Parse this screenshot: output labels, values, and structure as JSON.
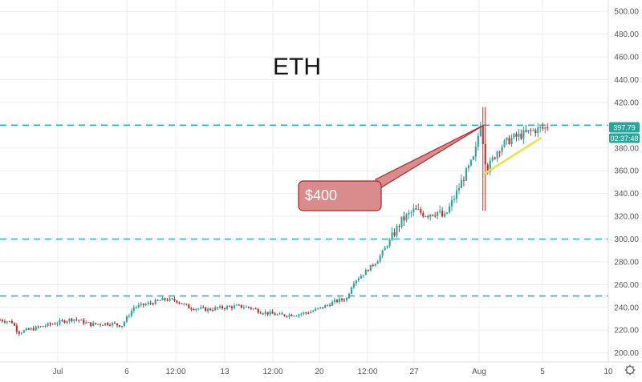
{
  "chart_data": {
    "type": "candlestick",
    "title": "ETH",
    "y_axis": {
      "ticks": [
        200,
        220,
        240,
        260,
        280,
        300,
        320,
        340,
        360,
        380,
        400,
        420,
        440,
        460,
        480,
        500
      ],
      "tick_labels": [
        "200.00",
        "220.00",
        "240.00",
        "260.00",
        "280.00",
        "300.00",
        "320.00",
        "340.00",
        "360.00",
        "380.00",
        "400.00",
        "420.00",
        "440.00",
        "460.00",
        "480.00",
        "500.00"
      ],
      "ylim": [
        192,
        510
      ],
      "position": "right"
    },
    "x_axis": {
      "tick_labels": [
        "Jul",
        "6",
        "12:00",
        "13",
        "12:00",
        "20",
        "12:00",
        "27",
        "Aug",
        "5",
        "10"
      ]
    },
    "horizontal_levels": [
      {
        "value": 400,
        "style": "dashed",
        "color": "#26b3c7"
      },
      {
        "value": 300,
        "style": "dashed",
        "color": "#26b3c7"
      },
      {
        "value": 250,
        "style": "dashed",
        "color": "#26b3c7"
      }
    ],
    "price_label": {
      "value": "397.79",
      "countdown": "02:37:48",
      "color": "#26a69a"
    },
    "annotation": {
      "text": "$400",
      "color": "#cd5c5c"
    },
    "trendline": {
      "from": {
        "bar": 0.795,
        "price": 357
      },
      "to": {
        "bar": 0.89,
        "price": 389
      },
      "color": "#f0e040"
    },
    "colors": {
      "up": "#26a69a",
      "down": "#c62828",
      "grid": "#eeeeee"
    },
    "grid": true,
    "series_segments": [
      [
        0.0,
        229
      ],
      [
        0.02,
        227
      ],
      [
        0.03,
        218
      ],
      [
        0.06,
        222
      ],
      [
        0.09,
        226
      ],
      [
        0.12,
        230
      ],
      [
        0.15,
        225
      ],
      [
        0.18,
        226
      ],
      [
        0.2,
        224
      ],
      [
        0.22,
        240
      ],
      [
        0.25,
        244
      ],
      [
        0.27,
        247
      ],
      [
        0.29,
        246
      ],
      [
        0.31,
        240
      ],
      [
        0.34,
        238
      ],
      [
        0.37,
        240
      ],
      [
        0.39,
        241
      ],
      [
        0.41,
        240
      ],
      [
        0.43,
        236
      ],
      [
        0.46,
        233
      ],
      [
        0.49,
        234
      ],
      [
        0.51,
        236
      ],
      [
        0.53,
        240
      ],
      [
        0.55,
        245
      ],
      [
        0.57,
        248
      ],
      [
        0.58,
        262
      ],
      [
        0.6,
        271
      ],
      [
        0.62,
        281
      ],
      [
        0.64,
        298
      ],
      [
        0.66,
        316
      ],
      [
        0.68,
        325
      ],
      [
        0.7,
        322
      ],
      [
        0.72,
        324
      ],
      [
        0.73,
        318
      ],
      [
        0.75,
        340
      ],
      [
        0.76,
        352
      ],
      [
        0.78,
        372
      ],
      [
        0.79,
        403
      ],
      [
        0.8,
        360
      ],
      [
        0.82,
        380
      ],
      [
        0.84,
        388
      ],
      [
        0.86,
        392
      ],
      [
        0.88,
        396
      ],
      [
        0.9,
        397.79
      ]
    ]
  }
}
